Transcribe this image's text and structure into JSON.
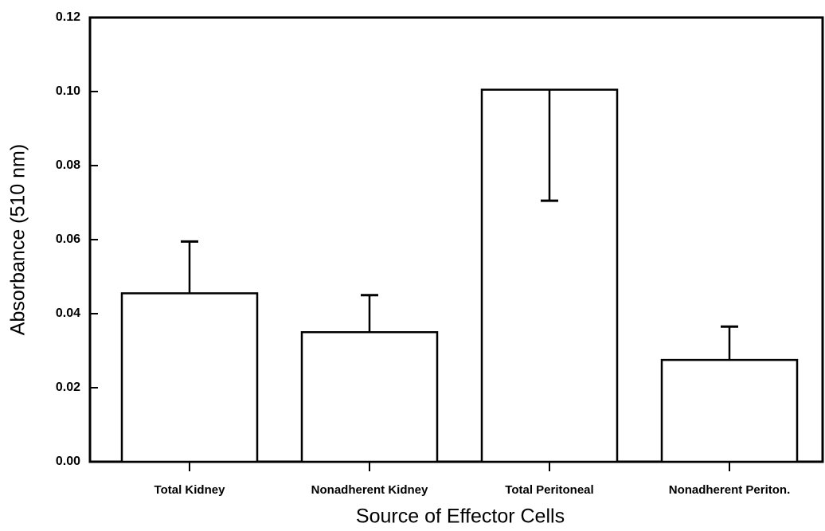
{
  "chart_data": {
    "type": "bar",
    "categories": [
      "Total Kidney",
      "Nonadherent Kidney",
      "Total Peritoneal",
      "Nonadherent Periton."
    ],
    "values": [
      0.0455,
      0.035,
      0.1005,
      0.0275
    ],
    "errors": [
      0.014,
      0.01,
      0.03,
      0.009
    ],
    "error_directions": [
      "up",
      "up",
      "down",
      "up"
    ],
    "color": "#ffffff",
    "xlabel": "Source of Effector Cells",
    "ylabel": "Absorbance (510 nm)",
    "ylim": [
      0,
      0.12
    ],
    "yticks": [
      {
        "value": 0,
        "label": "0.00"
      },
      {
        "value": 0.02,
        "label": "0.02"
      },
      {
        "value": 0.04,
        "label": "0.04"
      },
      {
        "value": 0.06,
        "label": "0.06"
      },
      {
        "value": 0.08,
        "label": "0.08"
      },
      {
        "value": 0.1,
        "label": "0.10"
      },
      {
        "value": 0.12,
        "label": "0.12"
      }
    ],
    "grid": false
  }
}
